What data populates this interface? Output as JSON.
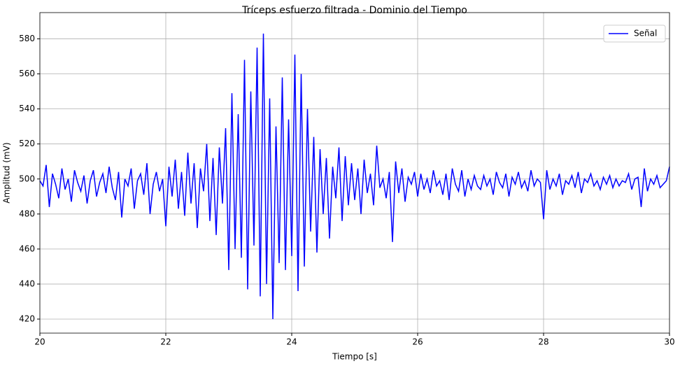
{
  "chart_data": {
    "type": "line",
    "title": "Tríceps esfuerzo filtrada - Dominio del Tiempo",
    "xlabel": "Tiempo [s]",
    "ylabel": "Amplitud (mV)",
    "x": [
      20.0,
      20.05,
      20.1,
      20.15,
      20.2,
      20.25,
      20.3,
      20.35,
      20.4,
      20.45,
      20.5,
      20.55,
      20.6,
      20.65,
      20.7,
      20.75,
      20.8,
      20.85,
      20.9,
      20.95,
      21.0,
      21.05,
      21.1,
      21.15,
      21.2,
      21.25,
      21.3,
      21.35,
      21.4,
      21.45,
      21.5,
      21.55,
      21.6,
      21.65,
      21.7,
      21.75,
      21.8,
      21.85,
      21.9,
      21.95,
      22.0,
      22.05,
      22.1,
      22.15,
      22.2,
      22.25,
      22.3,
      22.35,
      22.4,
      22.45,
      22.5,
      22.55,
      22.6,
      22.65,
      22.7,
      22.75,
      22.8,
      22.85,
      22.9,
      22.95,
      23.0,
      23.05,
      23.1,
      23.15,
      23.2,
      23.25,
      23.3,
      23.35,
      23.4,
      23.45,
      23.5,
      23.55,
      23.6,
      23.65,
      23.7,
      23.75,
      23.8,
      23.85,
      23.9,
      23.95,
      24.0,
      24.05,
      24.1,
      24.15,
      24.2,
      24.25,
      24.3,
      24.35,
      24.4,
      24.45,
      24.5,
      24.55,
      24.6,
      24.65,
      24.7,
      24.75,
      24.8,
      24.85,
      24.9,
      24.95,
      25.0,
      25.05,
      25.1,
      25.15,
      25.2,
      25.25,
      25.3,
      25.35,
      25.4,
      25.45,
      25.5,
      25.55,
      25.6,
      25.65,
      25.7,
      25.75,
      25.8,
      25.85,
      25.9,
      25.95,
      26.0,
      26.05,
      26.1,
      26.15,
      26.2,
      26.25,
      26.3,
      26.35,
      26.4,
      26.45,
      26.5,
      26.55,
      26.6,
      26.65,
      26.7,
      26.75,
      26.8,
      26.85,
      26.9,
      26.95,
      27.0,
      27.05,
      27.1,
      27.15,
      27.2,
      27.25,
      27.3,
      27.35,
      27.4,
      27.45,
      27.5,
      27.55,
      27.6,
      27.65,
      27.7,
      27.75,
      27.8,
      27.85,
      27.9,
      27.95,
      28.0,
      28.05,
      28.1,
      28.15,
      28.2,
      28.25,
      28.3,
      28.35,
      28.4,
      28.45,
      28.5,
      28.55,
      28.6,
      28.65,
      28.7,
      28.75,
      28.8,
      28.85,
      28.9,
      28.95,
      29.0,
      29.05,
      29.1,
      29.15,
      29.2,
      29.25,
      29.3,
      29.35,
      29.4,
      29.45,
      29.5,
      29.55,
      29.6,
      29.65,
      29.7,
      29.75,
      29.8,
      29.85,
      29.9,
      29.95,
      30.0
    ],
    "series": [
      {
        "name": "Señal",
        "color": "#0000ff",
        "values": [
          499,
          496,
          508,
          484,
          503,
          497,
          489,
          506,
          494,
          500,
          487,
          505,
          498,
          493,
          502,
          486,
          499,
          505,
          490,
          498,
          503,
          492,
          507,
          495,
          488,
          504,
          478,
          500,
          496,
          506,
          483,
          499,
          503,
          491,
          509,
          480,
          497,
          504,
          493,
          500,
          473,
          507,
          490,
          511,
          483,
          504,
          479,
          515,
          486,
          509,
          472,
          506,
          493,
          520,
          476,
          512,
          468,
          518,
          486,
          529,
          448,
          549,
          460,
          537,
          455,
          568,
          437,
          550,
          462,
          575,
          433,
          583,
          440,
          546,
          420,
          530,
          452,
          558,
          448,
          534,
          456,
          571,
          436,
          560,
          450,
          540,
          470,
          524,
          458,
          517,
          480,
          512,
          466,
          507,
          489,
          518,
          476,
          513,
          485,
          509,
          488,
          506,
          480,
          511,
          492,
          503,
          485,
          519,
          495,
          500,
          489,
          504,
          464,
          510,
          492,
          506,
          487,
          501,
          497,
          504,
          490,
          503,
          494,
          500,
          492,
          505,
          496,
          499,
          491,
          503,
          488,
          506,
          497,
          493,
          505,
          490,
          500,
          494,
          502,
          496,
          494,
          502,
          496,
          500,
          491,
          504,
          498,
          495,
          503,
          490,
          501,
          497,
          504,
          495,
          499,
          493,
          505,
          496,
          500,
          498,
          477,
          505,
          494,
          500,
          496,
          503,
          491,
          499,
          497,
          502,
          495,
          504,
          492,
          500,
          498,
          503,
          496,
          499,
          494,
          501,
          497,
          502,
          495,
          500,
          496,
          499,
          498,
          503,
          494,
          500,
          501,
          484,
          506,
          493,
          500,
          497,
          502,
          495,
          497,
          499,
          507
        ]
      }
    ],
    "xlim": [
      20,
      30
    ],
    "xticks": [
      20,
      22,
      24,
      26,
      28,
      30
    ],
    "ylim": [
      412,
      595
    ],
    "yticks": [
      420,
      440,
      460,
      480,
      500,
      520,
      540,
      560,
      580
    ],
    "grid": true,
    "legend": "upper right"
  }
}
